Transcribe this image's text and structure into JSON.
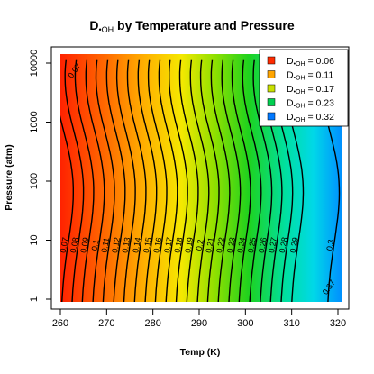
{
  "chart_data": {
    "type": "heatmap",
    "title": {
      "main": "D",
      "sub": "•OH",
      "rest": " by Temperature and Pressure"
    },
    "xlabel": "Temp (K)",
    "ylabel": "Pressure (atm)",
    "xlim": [
      260,
      320
    ],
    "ylim": [
      1,
      10000
    ],
    "y_scale": "log",
    "x_ticks": [
      "260",
      "270",
      "280",
      "290",
      "300",
      "310",
      "320"
    ],
    "y_ticks": [
      "1",
      "10",
      "100",
      "1000",
      "10000"
    ],
    "legend_position": "top-right",
    "legend": [
      {
        "prefix": "D",
        "sub": "•OH",
        "suffix": " = 0.06",
        "color": "#ff2b00"
      },
      {
        "prefix": "D",
        "sub": "•OH",
        "suffix": " = 0.11",
        "color": "#ffa500"
      },
      {
        "prefix": "D",
        "sub": "•OH",
        "suffix": " = 0.17",
        "color": "#c8e000"
      },
      {
        "prefix": "D",
        "sub": "•OH",
        "suffix": " = 0.23",
        "color": "#00d050"
      },
      {
        "prefix": "D",
        "sub": "•OH",
        "suffix": " = 0.32",
        "color": "#0078ff"
      }
    ],
    "contour_levels": [
      0.07,
      0.08,
      0.09,
      0.1,
      0.11,
      0.12,
      0.13,
      0.14,
      0.15,
      0.16,
      0.17,
      0.18,
      0.19,
      0.2,
      0.21,
      0.22,
      0.23,
      0.24,
      0.25,
      0.26,
      0.27,
      0.28,
      0.29,
      0.3
    ],
    "contour_labels_at_10atm": [
      {
        "label": "0.07",
        "t": 261.0
      },
      {
        "label": "0.08",
        "t": 263.2
      },
      {
        "label": "0.09",
        "t": 265.4
      },
      {
        "label": "0.1",
        "t": 267.7
      },
      {
        "label": "0.11",
        "t": 269.9
      },
      {
        "label": "0.12",
        "t": 272.2
      },
      {
        "label": "0.13",
        "t": 274.4
      },
      {
        "label": "0.14",
        "t": 276.7
      },
      {
        "label": "0.15",
        "t": 279.0
      },
      {
        "label": "0.16",
        "t": 281.2
      },
      {
        "label": "0.17",
        "t": 283.5
      },
      {
        "label": "0.18",
        "t": 285.7
      },
      {
        "label": "0.19",
        "t": 288.0
      },
      {
        "label": "0.2",
        "t": 290.3
      },
      {
        "label": "0.21",
        "t": 292.5
      },
      {
        "label": "0.22",
        "t": 294.8
      },
      {
        "label": "0.23",
        "t": 297.1
      },
      {
        "label": "0.24",
        "t": 299.3
      },
      {
        "label": "0.25",
        "t": 301.6
      },
      {
        "label": "0.26",
        "t": 303.9
      },
      {
        "label": "0.27",
        "t": 306.1
      },
      {
        "label": "0.28",
        "t": 308.4
      },
      {
        "label": "0.29",
        "t": 310.7
      },
      {
        "label": "0.3",
        "t": 318.5
      }
    ],
    "extra_labels": [
      {
        "label": "0.07",
        "t": 263.5,
        "p": 7000
      },
      {
        "label": "0.37",
        "t": 318.5,
        "p": 1.5
      }
    ],
    "grid": false
  }
}
